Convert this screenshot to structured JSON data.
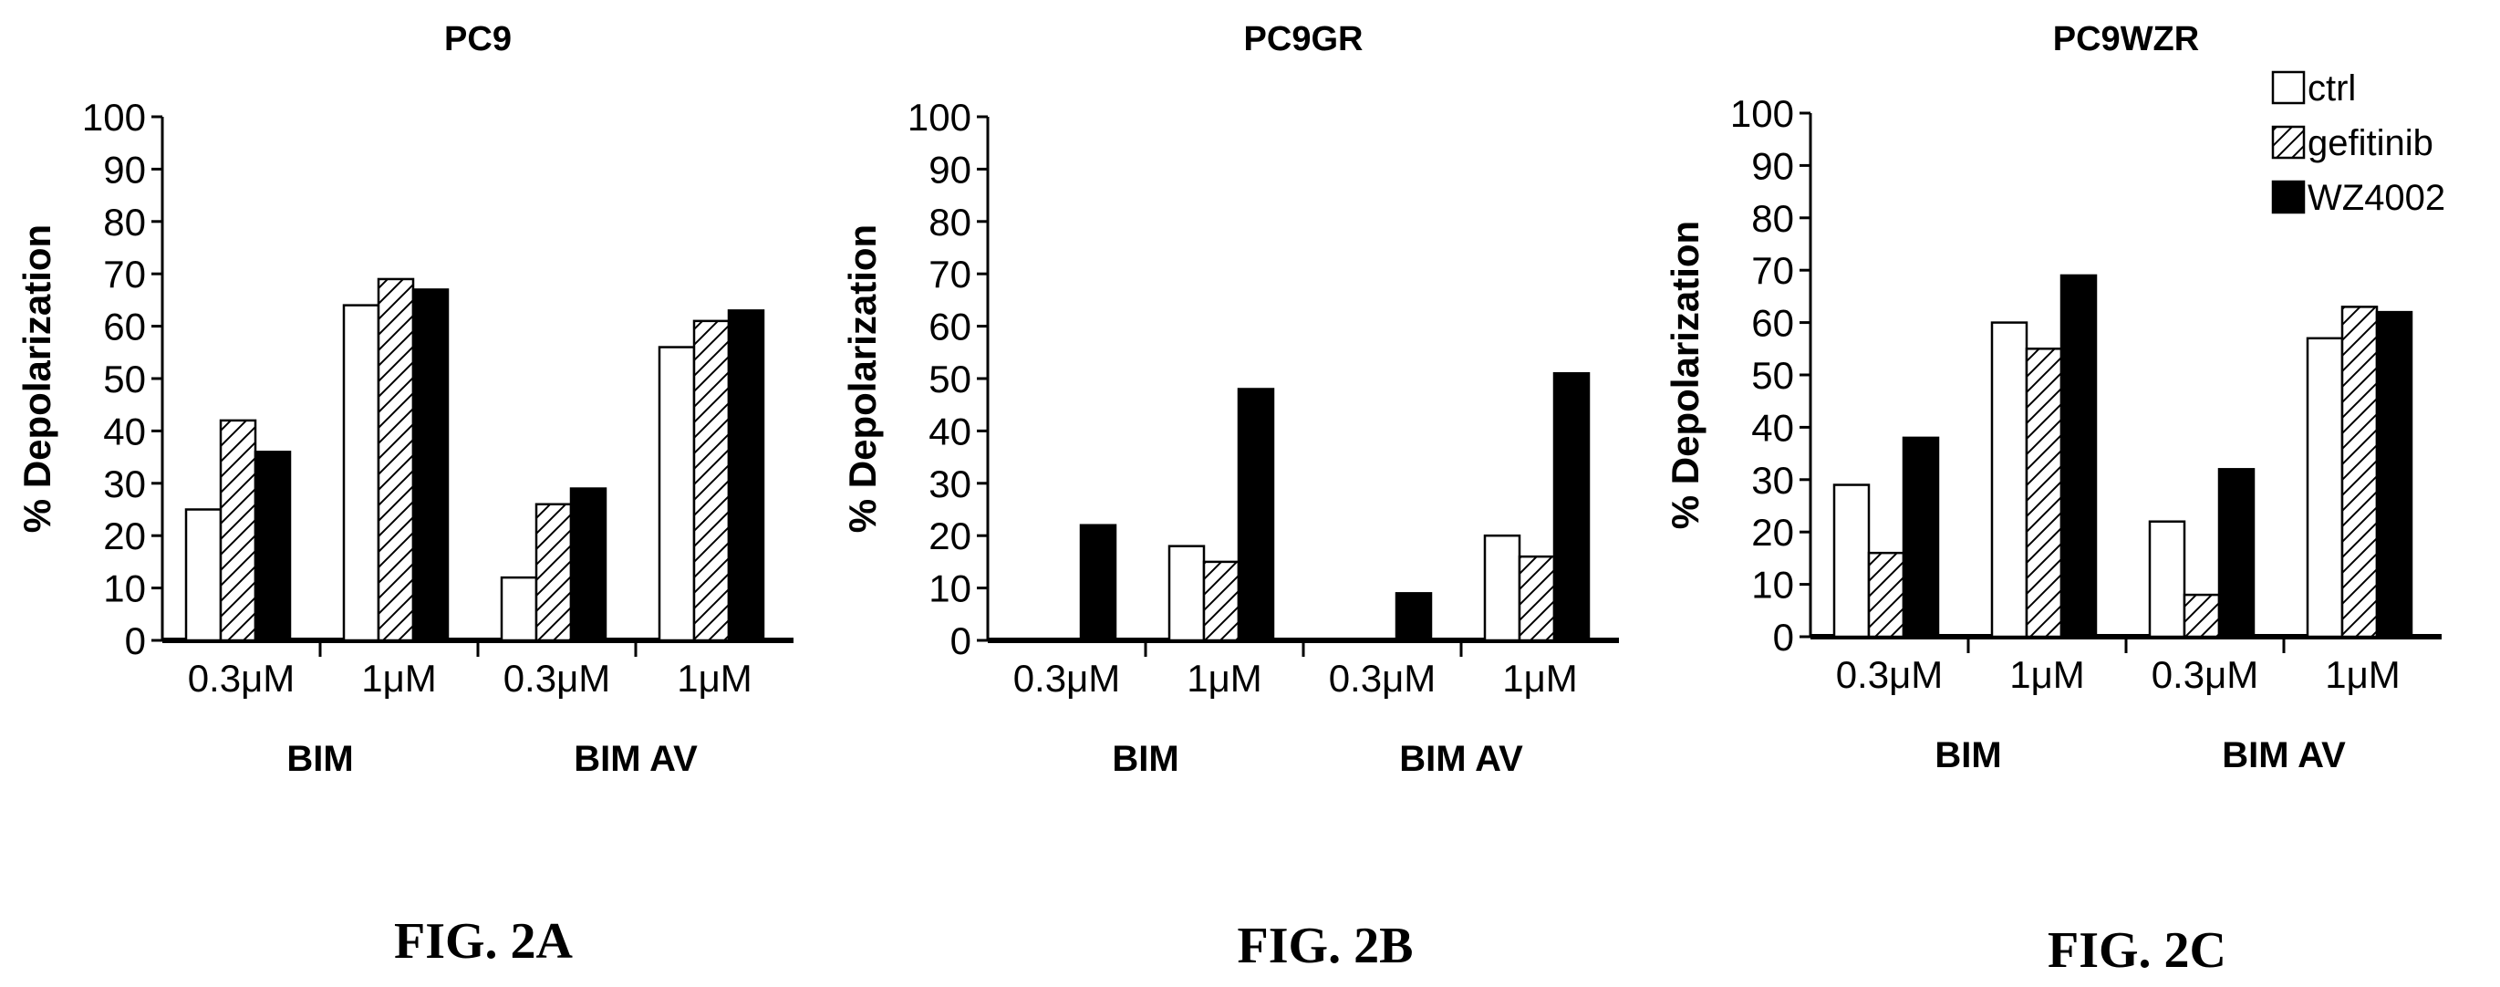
{
  "legend": {
    "entries": [
      "ctrl",
      "gefitinib",
      "WZ4002"
    ],
    "placement": "top-right of third panel"
  },
  "styles": {
    "ctrl": {
      "fill": "#ffffff",
      "pattern": "none"
    },
    "gefitinib": {
      "fill": "#ffffff",
      "pattern": "diagonal-hatch"
    },
    "WZ4002": {
      "fill": "#000000",
      "pattern": "none"
    }
  },
  "chart_data": [
    {
      "type": "bar",
      "title": "PC9",
      "ylabel": "% Depolarization",
      "ylim": [
        0,
        100
      ],
      "yticks": [
        "0",
        "10",
        "20",
        "30",
        "40",
        "50",
        "60",
        "70",
        "80",
        "90",
        "100"
      ],
      "categories": [
        "0.3μM",
        "1μM",
        "0.3μM",
        "1μM"
      ],
      "groups": [
        {
          "label": "BIM",
          "span": [
            0,
            1
          ]
        },
        {
          "label": "BIM AV",
          "span": [
            2,
            3
          ]
        }
      ],
      "series": [
        {
          "name": "ctrl",
          "values": [
            25,
            64,
            12,
            56
          ]
        },
        {
          "name": "gefitinib",
          "values": [
            42,
            69,
            26,
            61
          ]
        },
        {
          "name": "WZ4002",
          "values": [
            36,
            67,
            29,
            63
          ]
        }
      ],
      "caption": "FIG. 2A"
    },
    {
      "type": "bar",
      "title": "PC9GR",
      "ylabel": "% Depolarization",
      "ylim": [
        0,
        100
      ],
      "yticks": [
        "0",
        "10",
        "20",
        "30",
        "40",
        "50",
        "60",
        "70",
        "80",
        "90",
        "100"
      ],
      "categories": [
        "0.3μM",
        "1μM",
        "0.3μM",
        "1μM"
      ],
      "groups": [
        {
          "label": "BIM",
          "span": [
            0,
            1
          ]
        },
        {
          "label": "BIM AV",
          "span": [
            2,
            3
          ]
        }
      ],
      "series": [
        {
          "name": "ctrl",
          "values": [
            0,
            18,
            0,
            20
          ]
        },
        {
          "name": "gefitinib",
          "values": [
            0,
            15,
            0,
            16
          ]
        },
        {
          "name": "WZ4002",
          "values": [
            22,
            48,
            9,
            51
          ]
        }
      ],
      "caption": "FIG. 2B"
    },
    {
      "type": "bar",
      "title": "PC9WZR",
      "ylabel": "% Depolarization",
      "ylim": [
        0,
        100
      ],
      "yticks": [
        "0",
        "10",
        "20",
        "30",
        "40",
        "50",
        "60",
        "70",
        "80",
        "90",
        "100"
      ],
      "categories": [
        "0.3μM",
        "1μM",
        "0.3μM",
        "1μM"
      ],
      "groups": [
        {
          "label": "BIM",
          "span": [
            0,
            1
          ]
        },
        {
          "label": "BIM AV",
          "span": [
            2,
            3
          ]
        }
      ],
      "series": [
        {
          "name": "ctrl",
          "values": [
            29,
            60,
            22,
            57
          ]
        },
        {
          "name": "gefitinib",
          "values": [
            16,
            55,
            8,
            63
          ]
        },
        {
          "name": "WZ4002",
          "values": [
            38,
            69,
            32,
            62
          ]
        }
      ],
      "caption": "FIG. 2C"
    }
  ]
}
